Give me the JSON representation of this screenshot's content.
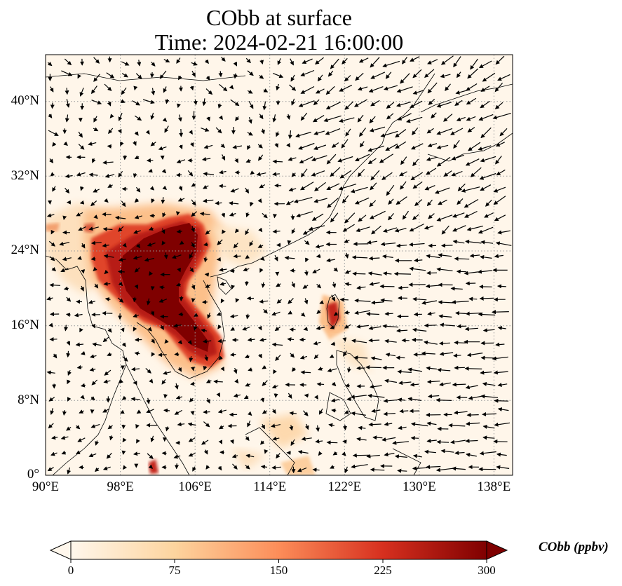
{
  "title_line1": "CObb at surface",
  "title_line2": "Time: 2024-02-21 16:00:00",
  "map": {
    "extent": {
      "lon_min": 90,
      "lon_max": 140,
      "lat_min": 0,
      "lat_max": 45
    },
    "gridlines": "dotted",
    "x_ticks": [
      {
        "lon": 90,
        "label": "90°E"
      },
      {
        "lon": 98,
        "label": "98°E"
      },
      {
        "lon": 106,
        "label": "106°E"
      },
      {
        "lon": 114,
        "label": "114°E"
      },
      {
        "lon": 122,
        "label": "122°E"
      },
      {
        "lon": 130,
        "label": "130°E"
      },
      {
        "lon": 138,
        "label": "138°E"
      }
    ],
    "y_ticks": [
      {
        "lat": 0,
        "label": "0°"
      },
      {
        "lat": 8,
        "label": "8°N"
      },
      {
        "lat": 16,
        "label": "16°N"
      },
      {
        "lat": 24,
        "label": "24°N"
      },
      {
        "lat": 32,
        "label": "32°N"
      },
      {
        "lat": 40,
        "label": "40°N"
      }
    ],
    "overlay": "wind vectors (quiver)",
    "high_concentration_region": "Indochina / southern China (~98°E–108°E, 12°N–27°N)"
  },
  "colorbar": {
    "label": "CObb (ppbv)",
    "min": 0,
    "max": 300,
    "ticks": [
      "0",
      "75",
      "150",
      "225",
      "300"
    ],
    "colormap": "OrRd",
    "colors": [
      "#fff7ec",
      "#fdd49e",
      "#fc8d59",
      "#d7301f",
      "#7f0000"
    ]
  }
}
